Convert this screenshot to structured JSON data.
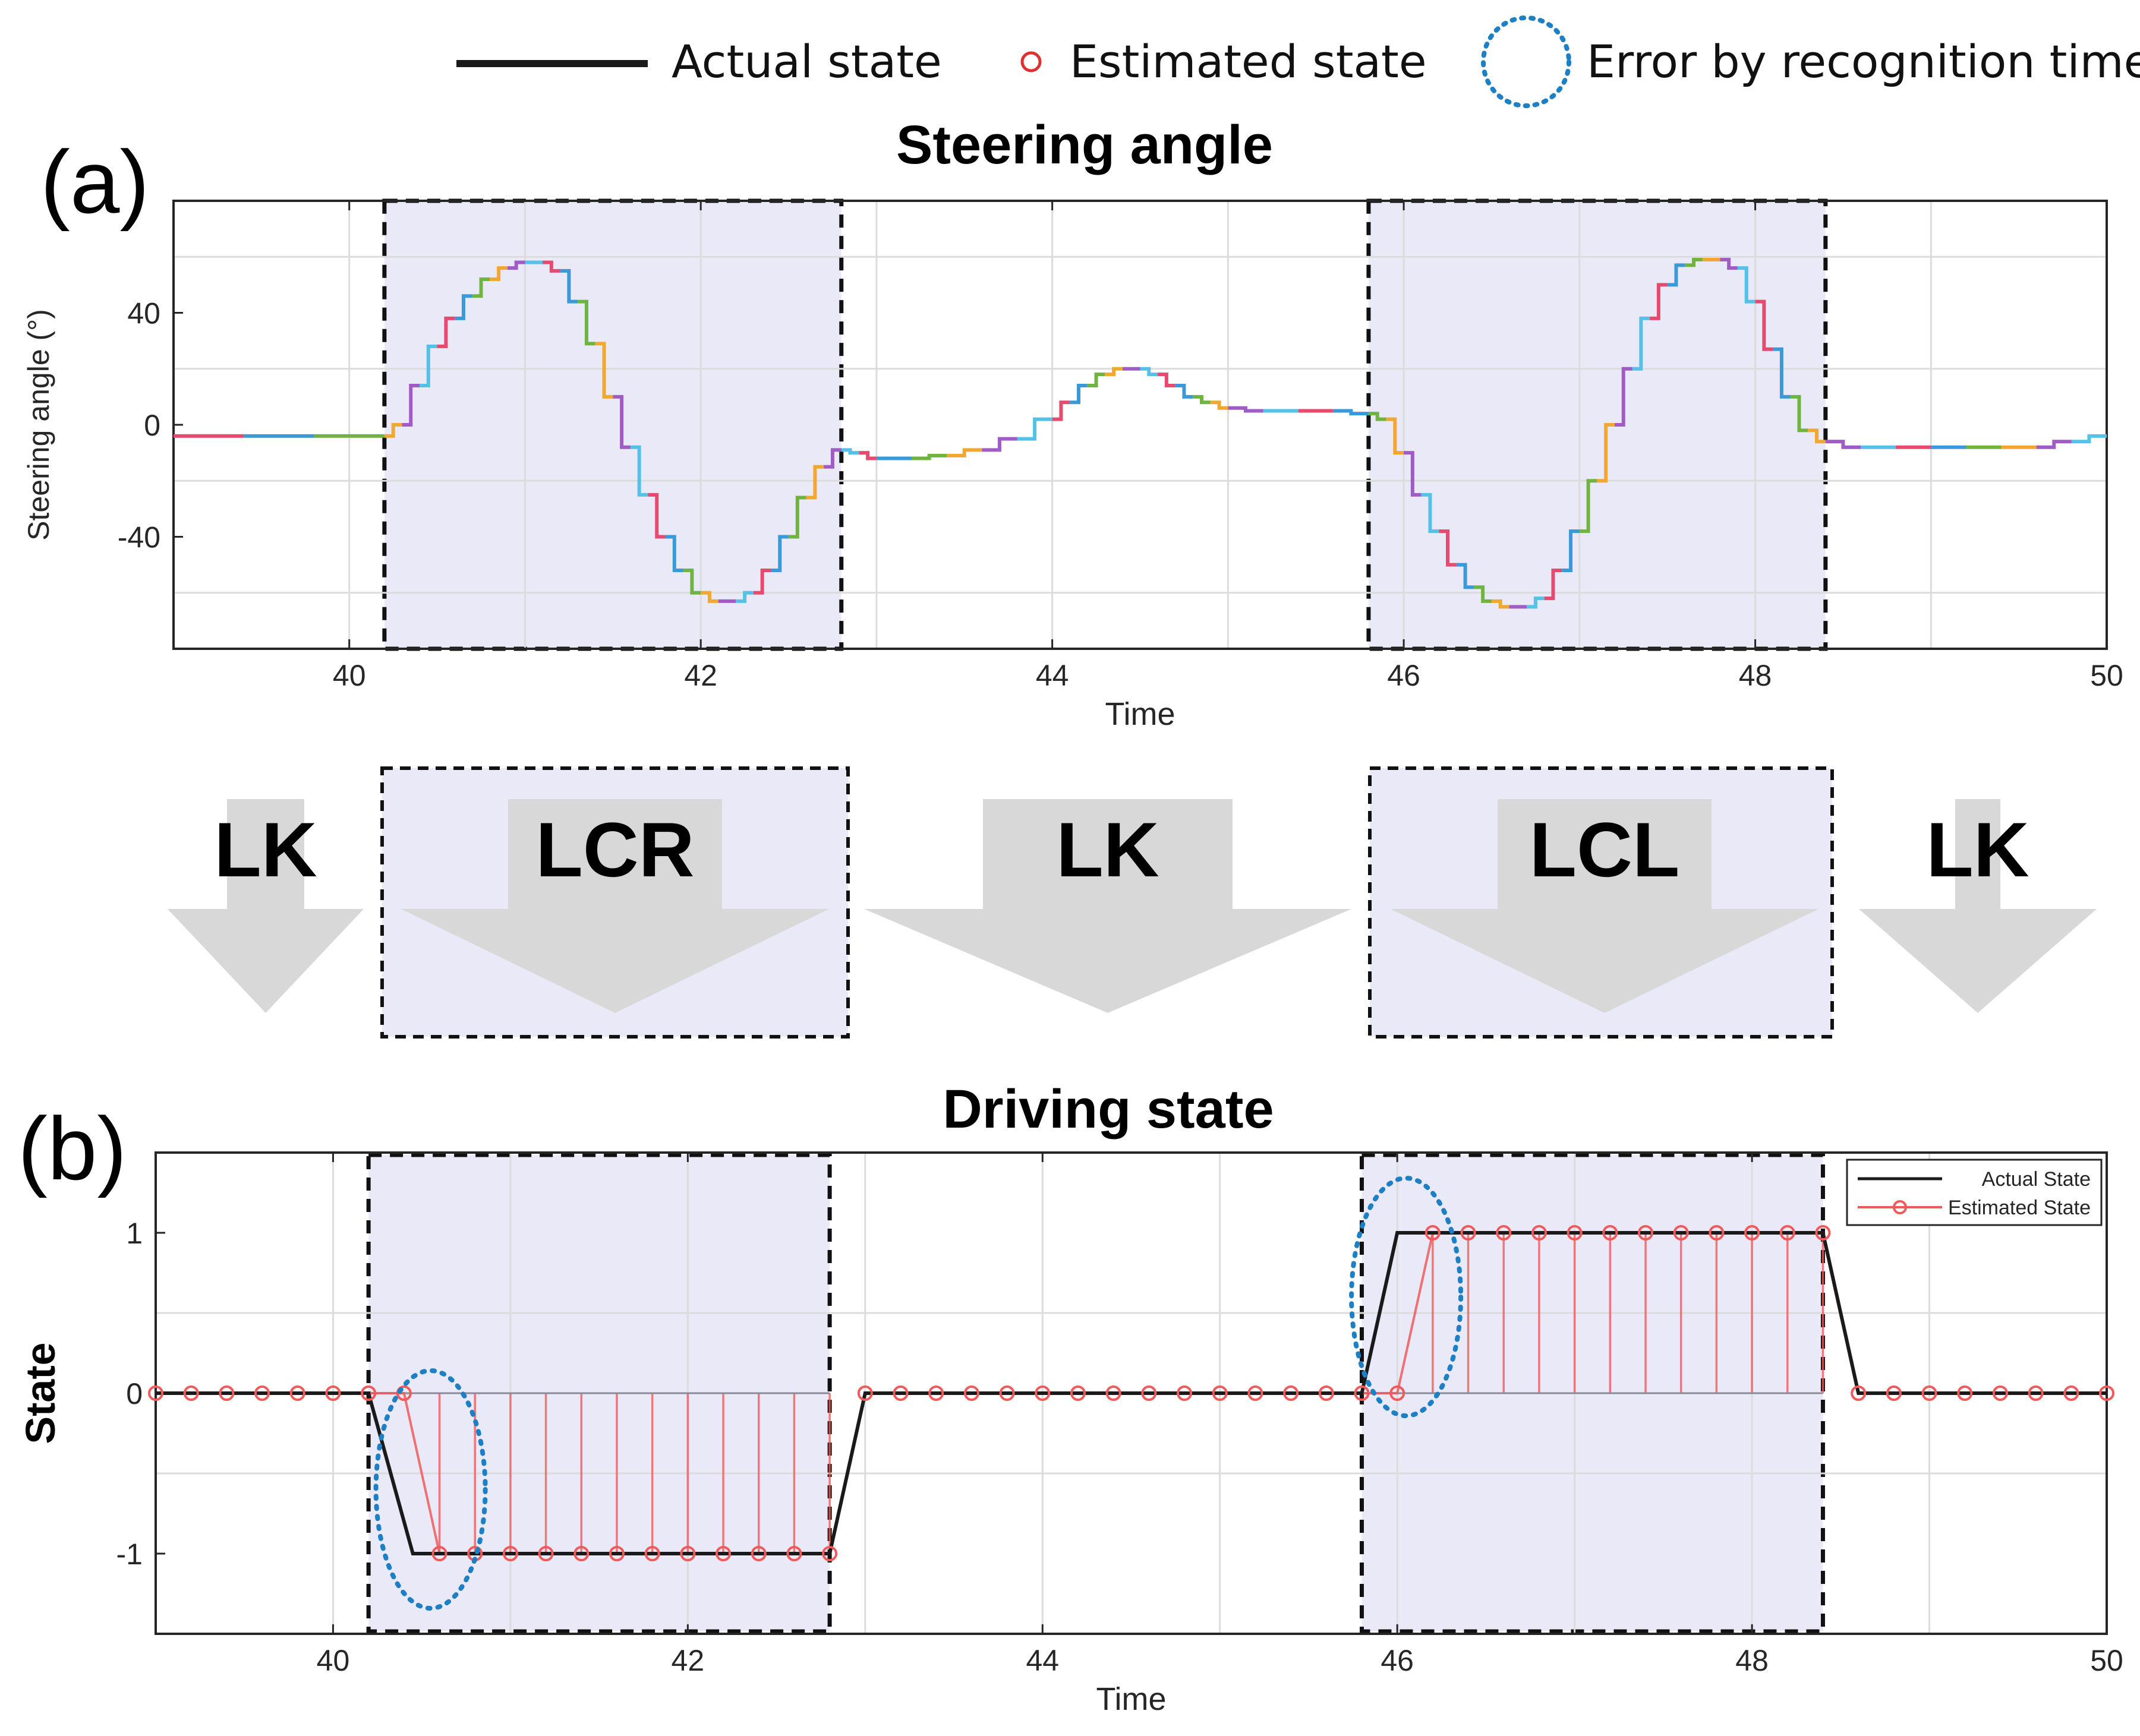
{
  "legend": {
    "actual": "Actual state",
    "estimated": "Estimated state",
    "error": "Error by recognition time"
  },
  "panel_a": {
    "label": "(a)",
    "title": "Steering angle"
  },
  "panel_b": {
    "label": "(b)",
    "title": "Driving state"
  },
  "maneuvers": [
    {
      "label": "LK",
      "boxed": false
    },
    {
      "label": "LCR",
      "boxed": true
    },
    {
      "label": "LK",
      "boxed": false
    },
    {
      "label": "LCL",
      "boxed": true
    },
    {
      "label": "LK",
      "boxed": false
    }
  ],
  "colors": {
    "actual": "#1a1a1a",
    "estimated": "#f05a5a",
    "error_ring": "#1d7fc4",
    "region_fill": "#eae9f8",
    "arrow": "#d8d8d8",
    "steering_palette": [
      "#e64a6e",
      "#3a9ad9",
      "#6fb43f",
      "#f0a92e",
      "#a15bc4",
      "#55c1e6"
    ]
  },
  "chart_data": [
    {
      "type": "line",
      "title": "Steering angle",
      "xlabel": "Time",
      "ylabel": "Steering angle (°)",
      "xlim": [
        39,
        50
      ],
      "ylim": [
        -80,
        80
      ],
      "xticks": [
        40,
        42,
        44,
        46,
        48,
        50
      ],
      "yticks": [
        -40,
        0,
        40
      ],
      "grid": true,
      "highlight_regions": [
        [
          40.2,
          42.8
        ],
        [
          45.8,
          48.4
        ]
      ],
      "series": [
        {
          "name": "Steering angle",
          "x": [
            39.0,
            39.4,
            39.8,
            40.2,
            40.3,
            40.4,
            40.5,
            40.6,
            40.7,
            40.8,
            40.9,
            41.0,
            41.1,
            41.2,
            41.3,
            41.4,
            41.5,
            41.6,
            41.7,
            41.8,
            41.9,
            42.0,
            42.1,
            42.2,
            42.3,
            42.4,
            42.5,
            42.6,
            42.7,
            42.8,
            42.9,
            43.0,
            43.2,
            43.4,
            43.6,
            43.8,
            44.0,
            44.1,
            44.2,
            44.3,
            44.4,
            44.5,
            44.6,
            44.7,
            44.8,
            44.9,
            45.0,
            45.2,
            45.4,
            45.6,
            45.8,
            45.9,
            46.0,
            46.1,
            46.2,
            46.3,
            46.4,
            46.5,
            46.6,
            46.7,
            46.8,
            46.9,
            47.0,
            47.1,
            47.2,
            47.3,
            47.4,
            47.5,
            47.6,
            47.7,
            47.8,
            47.9,
            48.0,
            48.1,
            48.2,
            48.3,
            48.4,
            48.6,
            48.8,
            49.0,
            49.2,
            49.4,
            49.6,
            49.8,
            50.0
          ],
          "values": [
            -4,
            -4,
            -4,
            -4,
            0,
            14,
            28,
            38,
            46,
            52,
            56,
            58,
            58,
            55,
            44,
            29,
            10,
            -8,
            -25,
            -40,
            -52,
            -60,
            -63,
            -63,
            -60,
            -52,
            -40,
            -26,
            -15,
            -9,
            -10,
            -12,
            -12,
            -11,
            -9,
            -5,
            2,
            8,
            14,
            18,
            20,
            20,
            18,
            14,
            10,
            8,
            6,
            5,
            5,
            5,
            4,
            2,
            -10,
            -25,
            -38,
            -50,
            -58,
            -63,
            -65,
            -65,
            -62,
            -52,
            -38,
            -20,
            0,
            20,
            38,
            50,
            57,
            59,
            59,
            56,
            44,
            27,
            10,
            -2,
            -6,
            -8,
            -8,
            -8,
            -8,
            -8,
            -8,
            -6,
            -4
          ]
        }
      ]
    },
    {
      "type": "line",
      "title": "Driving state",
      "xlabel": "Time",
      "ylabel": "State",
      "xlim": [
        39,
        50
      ],
      "ylim": [
        -1.5,
        1.5
      ],
      "xticks": [
        40,
        42,
        44,
        46,
        48,
        50
      ],
      "yticks": [
        -1,
        0,
        1
      ],
      "grid": true,
      "legend_position": "top-right",
      "legend_entries": [
        "Actual State",
        "Estimated State"
      ],
      "highlight_regions": [
        [
          40.2,
          42.8
        ],
        [
          45.8,
          48.4
        ]
      ],
      "error_regions": [
        {
          "x": 40.55,
          "y": -0.6
        },
        {
          "x": 46.05,
          "y": 0.6
        }
      ],
      "series": [
        {
          "name": "Actual State",
          "x": [
            39.0,
            40.2,
            40.45,
            42.8,
            43.0,
            45.8,
            46.0,
            48.4,
            48.6,
            50.0
          ],
          "values": [
            0,
            0,
            -1,
            -1,
            0,
            0,
            1,
            1,
            0,
            0
          ]
        },
        {
          "name": "Estimated State",
          "x": [
            39.0,
            39.2,
            39.4,
            39.6,
            39.8,
            40.0,
            40.2,
            40.4,
            40.6,
            40.8,
            41.0,
            41.2,
            41.4,
            41.6,
            41.8,
            42.0,
            42.2,
            42.4,
            42.6,
            42.8,
            43.0,
            43.2,
            43.4,
            43.6,
            43.8,
            44.0,
            44.2,
            44.4,
            44.6,
            44.8,
            45.0,
            45.2,
            45.4,
            45.6,
            45.8,
            46.0,
            46.2,
            46.4,
            46.6,
            46.8,
            47.0,
            47.2,
            47.4,
            47.6,
            47.8,
            48.0,
            48.2,
            48.4,
            48.6,
            48.8,
            49.0,
            49.2,
            49.4,
            49.6,
            49.8,
            50.0
          ],
          "values": [
            0,
            0,
            0,
            0,
            0,
            0,
            0,
            0,
            -1,
            -1,
            -1,
            -1,
            -1,
            -1,
            -1,
            -1,
            -1,
            -1,
            -1,
            -1,
            0,
            0,
            0,
            0,
            0,
            0,
            0,
            0,
            0,
            0,
            0,
            0,
            0,
            0,
            0,
            0,
            1,
            1,
            1,
            1,
            1,
            1,
            1,
            1,
            1,
            1,
            1,
            1,
            0,
            0,
            0,
            0,
            0,
            0,
            0,
            0
          ]
        }
      ]
    }
  ]
}
